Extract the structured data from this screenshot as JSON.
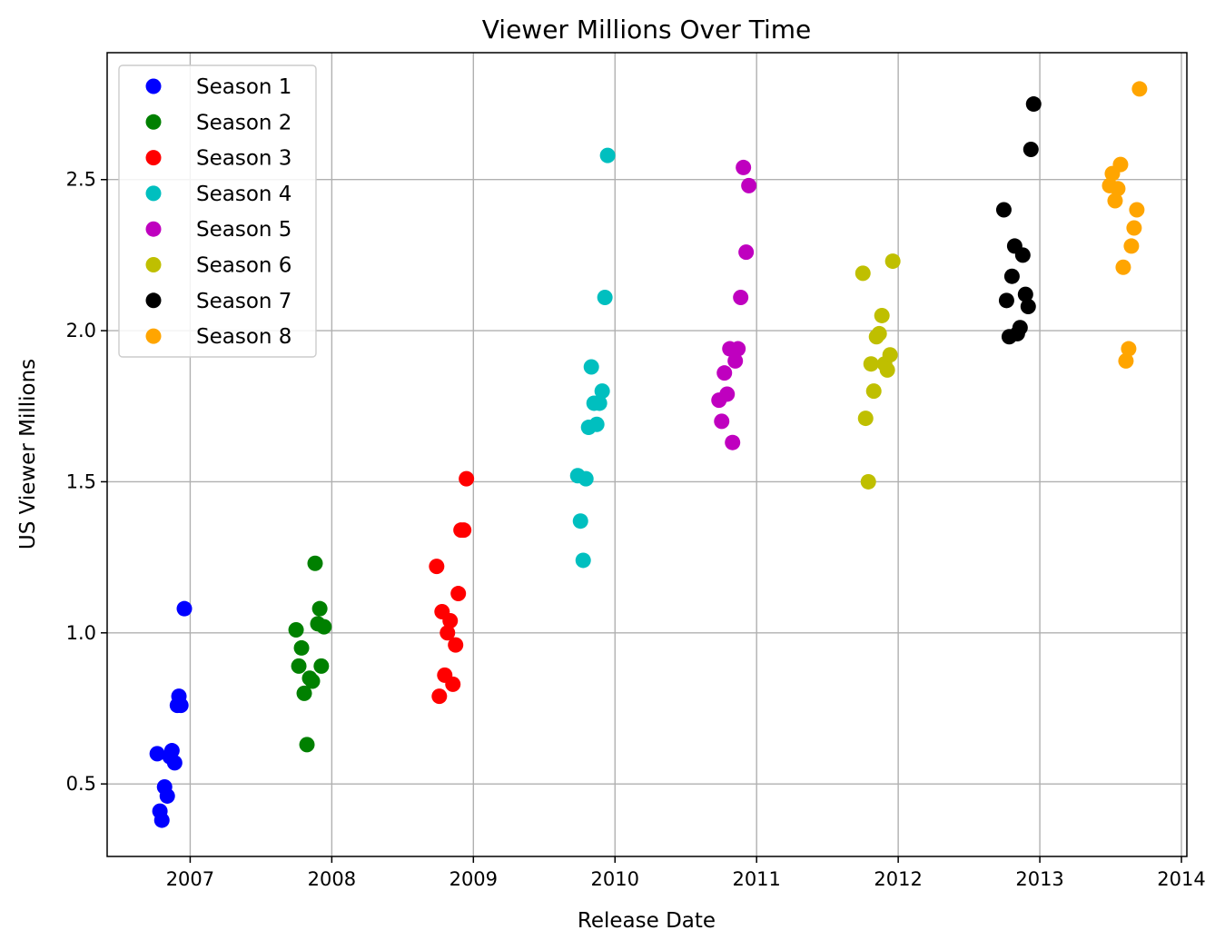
{
  "chart_data": {
    "type": "scatter",
    "title": "Viewer Millions Over Time",
    "xlabel": "Release Date",
    "ylabel": "US Viewer Millions",
    "xlim": [
      "2006-06-01",
      "2014-01-15"
    ],
    "ylim": [
      0.26,
      2.92
    ],
    "x_ticks": [
      "2007",
      "2008",
      "2009",
      "2010",
      "2011",
      "2012",
      "2013",
      "2014"
    ],
    "y_ticks": [
      "0.5",
      "1.0",
      "1.5",
      "2.0",
      "2.5"
    ],
    "grid": true,
    "legend_position": "upper-left",
    "series": [
      {
        "name": "Season 1",
        "color": "#0000ff",
        "points": [
          [
            "2006-10-08",
            0.6
          ],
          [
            "2006-10-15",
            0.41
          ],
          [
            "2006-10-20",
            0.38
          ],
          [
            "2006-10-27",
            0.49
          ],
          [
            "2006-11-03",
            0.46
          ],
          [
            "2006-11-10",
            0.59
          ],
          [
            "2006-11-15",
            0.61
          ],
          [
            "2006-11-22",
            0.57
          ],
          [
            "2006-11-29",
            0.76
          ],
          [
            "2006-12-03",
            0.79
          ],
          [
            "2006-12-08",
            0.76
          ],
          [
            "2006-12-17",
            1.08
          ]
        ]
      },
      {
        "name": "Season 2",
        "color": "#008000",
        "points": [
          [
            "2007-10-01",
            1.01
          ],
          [
            "2007-10-08",
            0.89
          ],
          [
            "2007-10-15",
            0.95
          ],
          [
            "2007-10-22",
            0.8
          ],
          [
            "2007-10-29",
            0.63
          ],
          [
            "2007-11-05",
            0.85
          ],
          [
            "2007-11-12",
            0.84
          ],
          [
            "2007-11-19",
            1.23
          ],
          [
            "2007-11-26",
            1.03
          ],
          [
            "2007-12-01",
            1.08
          ],
          [
            "2007-12-05",
            0.89
          ],
          [
            "2007-12-12",
            1.02
          ]
        ]
      },
      {
        "name": "Season 3",
        "color": "#ff0000",
        "points": [
          [
            "2008-09-28",
            1.22
          ],
          [
            "2008-10-05",
            0.79
          ],
          [
            "2008-10-12",
            1.07
          ],
          [
            "2008-10-19",
            0.86
          ],
          [
            "2008-10-26",
            1.0
          ],
          [
            "2008-11-02",
            1.04
          ],
          [
            "2008-11-09",
            0.83
          ],
          [
            "2008-11-16",
            0.96
          ],
          [
            "2008-11-23",
            1.13
          ],
          [
            "2008-11-30",
            1.34
          ],
          [
            "2008-12-07",
            1.34
          ],
          [
            "2008-12-14",
            1.51
          ]
        ]
      },
      {
        "name": "Season 4",
        "color": "#00bfbf",
        "points": [
          [
            "2009-09-27",
            1.52
          ],
          [
            "2009-10-04",
            1.37
          ],
          [
            "2009-10-11",
            1.24
          ],
          [
            "2009-10-18",
            1.51
          ],
          [
            "2009-10-25",
            1.68
          ],
          [
            "2009-11-01",
            1.88
          ],
          [
            "2009-11-08",
            1.76
          ],
          [
            "2009-11-15",
            1.69
          ],
          [
            "2009-11-22",
            1.76
          ],
          [
            "2009-11-29",
            1.8
          ],
          [
            "2009-12-06",
            2.11
          ],
          [
            "2009-12-13",
            2.58
          ]
        ]
      },
      {
        "name": "Season 5",
        "color": "#bf00bf",
        "points": [
          [
            "2010-09-26",
            1.77
          ],
          [
            "2010-10-03",
            1.7
          ],
          [
            "2010-10-10",
            1.86
          ],
          [
            "2010-10-17",
            1.79
          ],
          [
            "2010-10-24",
            1.94
          ],
          [
            "2010-10-31",
            1.63
          ],
          [
            "2010-11-07",
            1.9
          ],
          [
            "2010-11-14",
            1.94
          ],
          [
            "2010-11-21",
            2.11
          ],
          [
            "2010-11-28",
            2.54
          ],
          [
            "2010-12-05",
            2.26
          ],
          [
            "2010-12-12",
            2.48
          ]
        ]
      },
      {
        "name": "Season 6",
        "color": "#bfbf00",
        "points": [
          [
            "2011-10-02",
            2.19
          ],
          [
            "2011-10-09",
            1.71
          ],
          [
            "2011-10-16",
            1.5
          ],
          [
            "2011-10-23",
            1.89
          ],
          [
            "2011-10-30",
            1.8
          ],
          [
            "2011-11-06",
            1.98
          ],
          [
            "2011-11-13",
            1.99
          ],
          [
            "2011-11-20",
            2.05
          ],
          [
            "2011-11-27",
            1.89
          ],
          [
            "2011-12-04",
            1.87
          ],
          [
            "2011-12-11",
            1.92
          ],
          [
            "2011-12-18",
            2.23
          ]
        ]
      },
      {
        "name": "Season 7",
        "color": "#000000",
        "points": [
          [
            "2012-09-30",
            2.4
          ],
          [
            "2012-10-07",
            2.1
          ],
          [
            "2012-10-14",
            1.98
          ],
          [
            "2012-10-21",
            2.18
          ],
          [
            "2012-10-28",
            2.28
          ],
          [
            "2012-11-04",
            1.99
          ],
          [
            "2012-11-11",
            2.01
          ],
          [
            "2012-11-18",
            2.25
          ],
          [
            "2012-11-25",
            2.12
          ],
          [
            "2012-12-02",
            2.08
          ],
          [
            "2012-12-09",
            2.6
          ],
          [
            "2012-12-16",
            2.75
          ]
        ]
      },
      {
        "name": "Season 8",
        "color": "#ffa500",
        "points": [
          [
            "2013-06-30",
            2.48
          ],
          [
            "2013-07-07",
            2.52
          ],
          [
            "2013-07-14",
            2.43
          ],
          [
            "2013-07-21",
            2.47
          ],
          [
            "2013-07-28",
            2.55
          ],
          [
            "2013-08-04",
            2.21
          ],
          [
            "2013-08-11",
            1.9
          ],
          [
            "2013-08-18",
            1.94
          ],
          [
            "2013-08-25",
            2.28
          ],
          [
            "2013-09-01",
            2.34
          ],
          [
            "2013-09-08",
            2.4
          ],
          [
            "2013-09-15",
            2.8
          ]
        ]
      }
    ]
  }
}
